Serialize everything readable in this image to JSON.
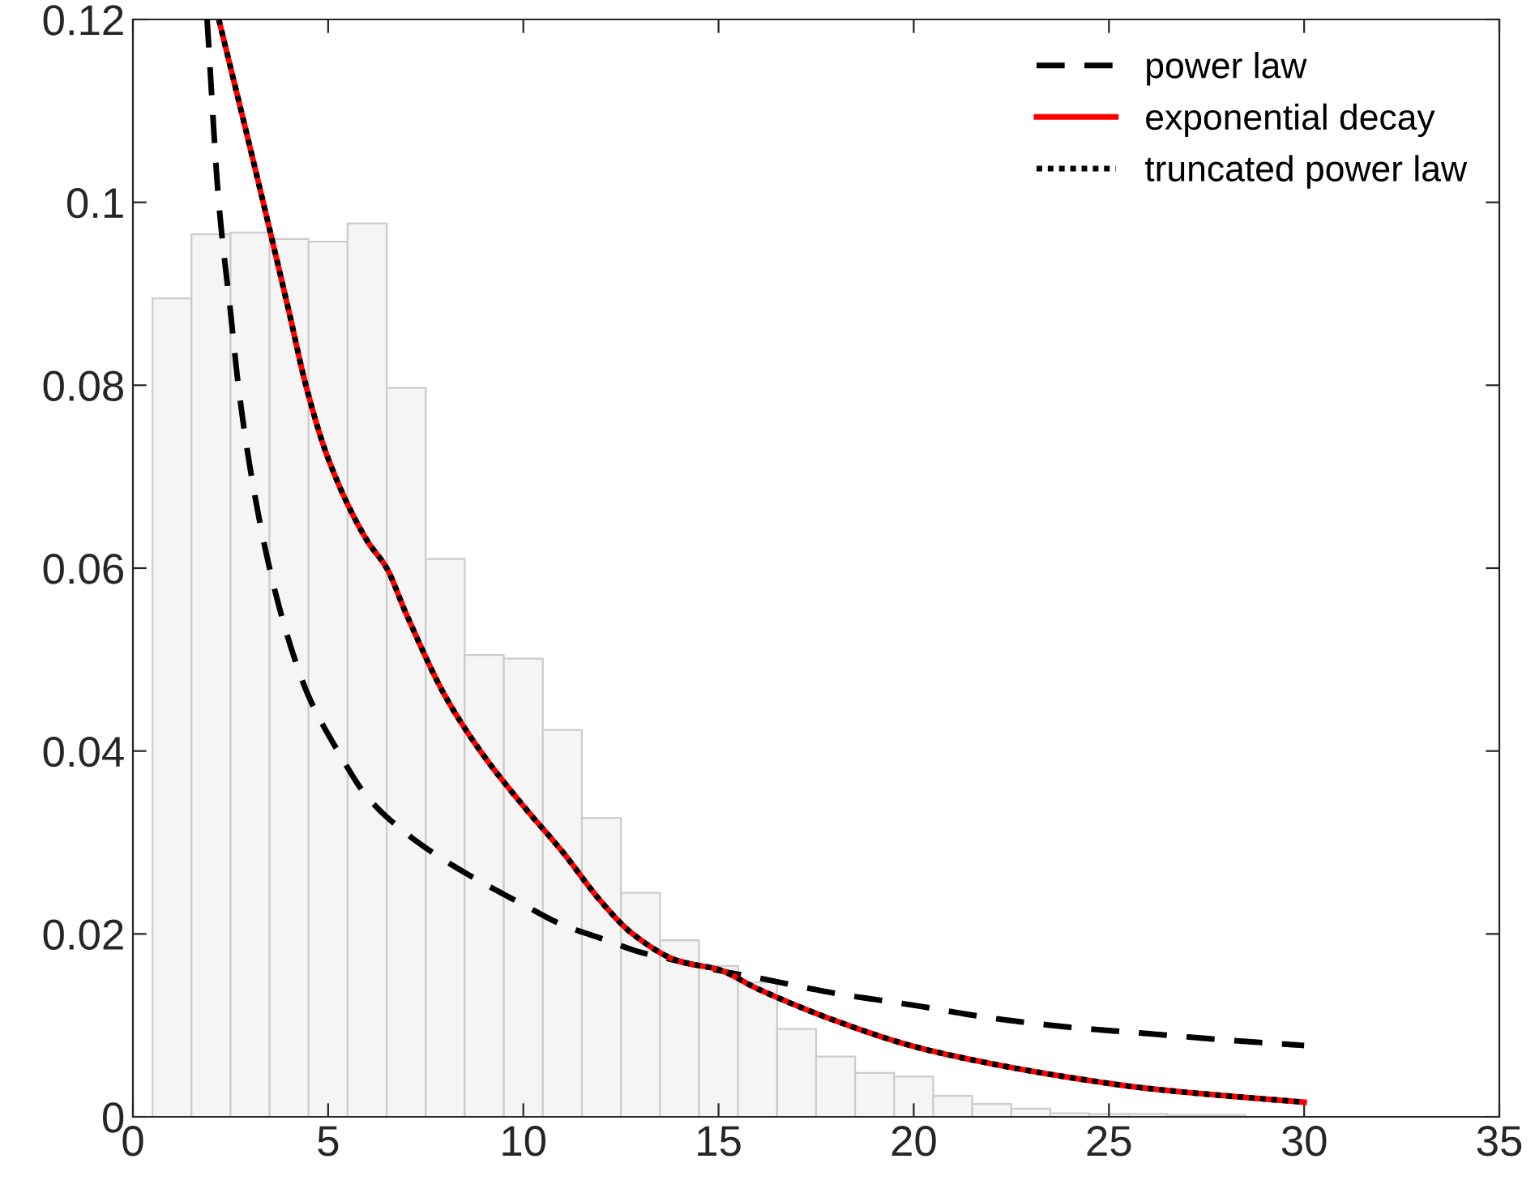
{
  "chart_data": {
    "type": "histogram",
    "bins": [
      0.5,
      1.5,
      2.5,
      3.5,
      4.5,
      5.5,
      6.5,
      7.5,
      8.5,
      9.5,
      10.5,
      11.5,
      12.5,
      13.5,
      14.5,
      15.5,
      16.5,
      17.5,
      18.5,
      19.5,
      20.5,
      21.5,
      22.5,
      23.5,
      24.5,
      25.5,
      26.5,
      27.5,
      28.5,
      29.5,
      30.5
    ],
    "values": [
      0.0895,
      0.0965,
      0.0967,
      0.096,
      0.0957,
      0.0977,
      0.0797,
      0.061,
      0.0505,
      0.0501,
      0.0423,
      0.0327,
      0.0245,
      0.0193,
      0.0165,
      0.0147,
      0.0096,
      0.0066,
      0.0048,
      0.0044,
      0.0023,
      0.0014,
      0.0009,
      0.0004,
      0.0003,
      0.0003,
      0.0002,
      0.0002,
      null,
      null
    ],
    "color": "#f5f5f5",
    "series": [
      {
        "name": "power law",
        "type": "line",
        "color": "#000000",
        "line_style": "dashed",
        "x": [
          1.9,
          2.2,
          2.5,
          2.7,
          3,
          3.5,
          4,
          4.5,
          5.25,
          6,
          7,
          8,
          9,
          10,
          11,
          12,
          13,
          14,
          15,
          16,
          18,
          20,
          22,
          24,
          26,
          28,
          30
        ],
        "values": [
          0.12,
          0.1,
          0.088,
          0.08,
          0.071,
          0.06,
          0.052,
          0.046,
          0.04,
          0.035,
          0.031,
          0.028,
          0.0255,
          0.0232,
          0.021,
          0.0195,
          0.018,
          0.017,
          0.016,
          0.0152,
          0.0135,
          0.0122,
          0.0108,
          0.0098,
          0.0091,
          0.0084,
          0.0078
        ]
      },
      {
        "name": "exponential decay",
        "type": "line",
        "color": "#ff0000",
        "line_style": "solid",
        "x": [
          2.2,
          3,
          4,
          4.43,
          5,
          6,
          6.5,
          7,
          8,
          8.9,
          10,
          11,
          12,
          12.8,
          14,
          15,
          16,
          18,
          20,
          22,
          24,
          26,
          28,
          30
        ],
        "values": [
          0.12,
          0.106,
          0.088,
          0.08,
          0.072,
          0.063,
          0.06,
          0.055,
          0.046,
          0.04,
          0.034,
          0.029,
          0.0235,
          0.02,
          0.017,
          0.0161,
          0.014,
          0.0105,
          0.0077,
          0.0058,
          0.0043,
          0.0031,
          0.0023,
          0.0016
        ]
      },
      {
        "name": "truncated power law",
        "type": "line",
        "color": "#000000",
        "line_style": "dotted",
        "x": [
          2.2,
          3,
          4,
          4.43,
          5,
          6,
          6.5,
          7,
          8,
          8.9,
          10,
          11,
          12,
          12.8,
          14,
          15,
          16,
          18,
          20,
          22,
          24,
          26,
          28,
          30
        ],
        "values": [
          0.12,
          0.106,
          0.088,
          0.08,
          0.072,
          0.063,
          0.06,
          0.055,
          0.046,
          0.04,
          0.034,
          0.029,
          0.0235,
          0.02,
          0.017,
          0.0161,
          0.014,
          0.0105,
          0.0077,
          0.0058,
          0.0043,
          0.0031,
          0.0023,
          0.0016
        ]
      }
    ],
    "xlim": [
      0,
      35
    ],
    "xticks": [
      0,
      5,
      10,
      15,
      20,
      25,
      30,
      35
    ],
    "ylim": [
      0,
      0.12
    ],
    "yticks": [
      0,
      0.02,
      0.04,
      0.06,
      0.08,
      0.1,
      0.12
    ],
    "legend": "top right",
    "grid": false
  }
}
